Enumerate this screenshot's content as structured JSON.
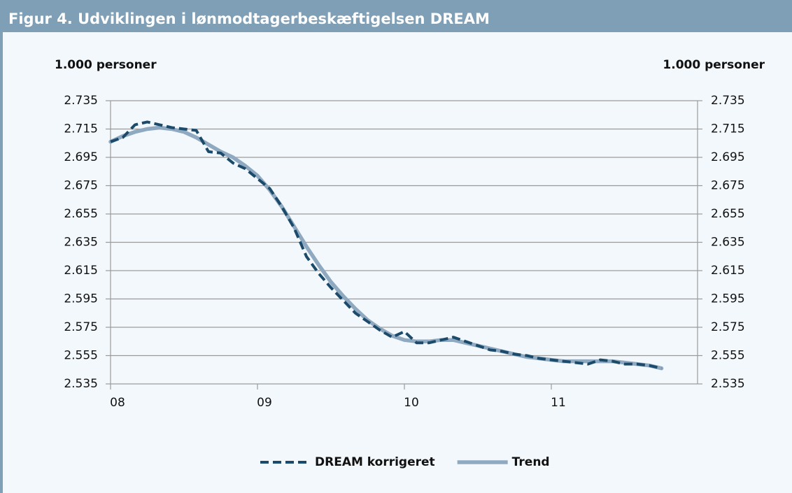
{
  "chart_data": {
    "type": "line",
    "title": "Figur 4. Udviklingen i lønmodtagerbeskæftigelsen DREAM",
    "y_label": "1.000 personer",
    "y2_label": "1.000 personer",
    "categories": [
      "08",
      null,
      null,
      null,
      null,
      null,
      null,
      null,
      null,
      null,
      null,
      null,
      "09",
      null,
      null,
      null,
      null,
      null,
      null,
      null,
      null,
      null,
      null,
      null,
      "10",
      null,
      null,
      null,
      null,
      null,
      null,
      null,
      null,
      null,
      null,
      null,
      "11",
      null,
      null,
      null,
      null,
      null,
      null,
      null,
      null,
      null
    ],
    "series": [
      {
        "name": "DREAM korrigeret",
        "color": "#1b4a6b",
        "dash": true,
        "values": [
          2706,
          2709,
          2718,
          2720,
          2718,
          2716,
          2715,
          2714,
          2699,
          2698,
          2691,
          2687,
          2680,
          2673,
          2660,
          2645,
          2625,
          2613,
          2603,
          2594,
          2585,
          2579,
          2573,
          2568,
          2572,
          2564,
          2564,
          2566,
          2568,
          2565,
          2562,
          2559,
          2558,
          2556,
          2555,
          2553,
          2552,
          2551,
          2550,
          2549,
          2552,
          2551,
          2549,
          2549,
          2548,
          2546
        ]
      },
      {
        "name": "Trend",
        "color": "#8fa9c0",
        "dash": false,
        "values": [
          2706,
          2710,
          2713,
          2715,
          2716,
          2715,
          2713,
          2709,
          2704,
          2699,
          2695,
          2689,
          2682,
          2672,
          2660,
          2646,
          2632,
          2619,
          2607,
          2597,
          2588,
          2580,
          2574,
          2569,
          2566,
          2565,
          2565,
          2566,
          2566,
          2564,
          2562,
          2560,
          2558,
          2556,
          2554,
          2553,
          2552,
          2551,
          2551,
          2551,
          2551,
          2551,
          2550,
          2549,
          2548,
          2546
        ]
      }
    ],
    "ylim": [
      2535,
      2735
    ],
    "yticks": [
      {
        "value": 2535,
        "label": "2.535"
      },
      {
        "value": 2555,
        "label": "2.555"
      },
      {
        "value": 2575,
        "label": "2.575"
      },
      {
        "value": 2595,
        "label": "2.595"
      },
      {
        "value": 2615,
        "label": "2.615"
      },
      {
        "value": 2635,
        "label": "2.635"
      },
      {
        "value": 2655,
        "label": "2.655"
      },
      {
        "value": 2675,
        "label": "2.675"
      },
      {
        "value": 2695,
        "label": "2.695"
      },
      {
        "value": 2715,
        "label": "2.715"
      },
      {
        "value": 2735,
        "label": "2.735"
      }
    ],
    "y2lim": [
      2535,
      2735
    ],
    "y2ticks": [
      {
        "value": 2535,
        "label": "2.535"
      },
      {
        "value": 2555,
        "label": "2.555"
      },
      {
        "value": 2575,
        "label": "2.575"
      },
      {
        "value": 2595,
        "label": "2.595"
      },
      {
        "value": 2615,
        "label": "2.615"
      },
      {
        "value": 2635,
        "label": "2.635"
      },
      {
        "value": 2655,
        "label": "2.655"
      },
      {
        "value": 2675,
        "label": "2.675"
      },
      {
        "value": 2695,
        "label": "2.695"
      },
      {
        "value": 2715,
        "label": "2.715"
      },
      {
        "value": 2735,
        "label": "2.735"
      }
    ],
    "grid": true,
    "legend": "bottom"
  }
}
